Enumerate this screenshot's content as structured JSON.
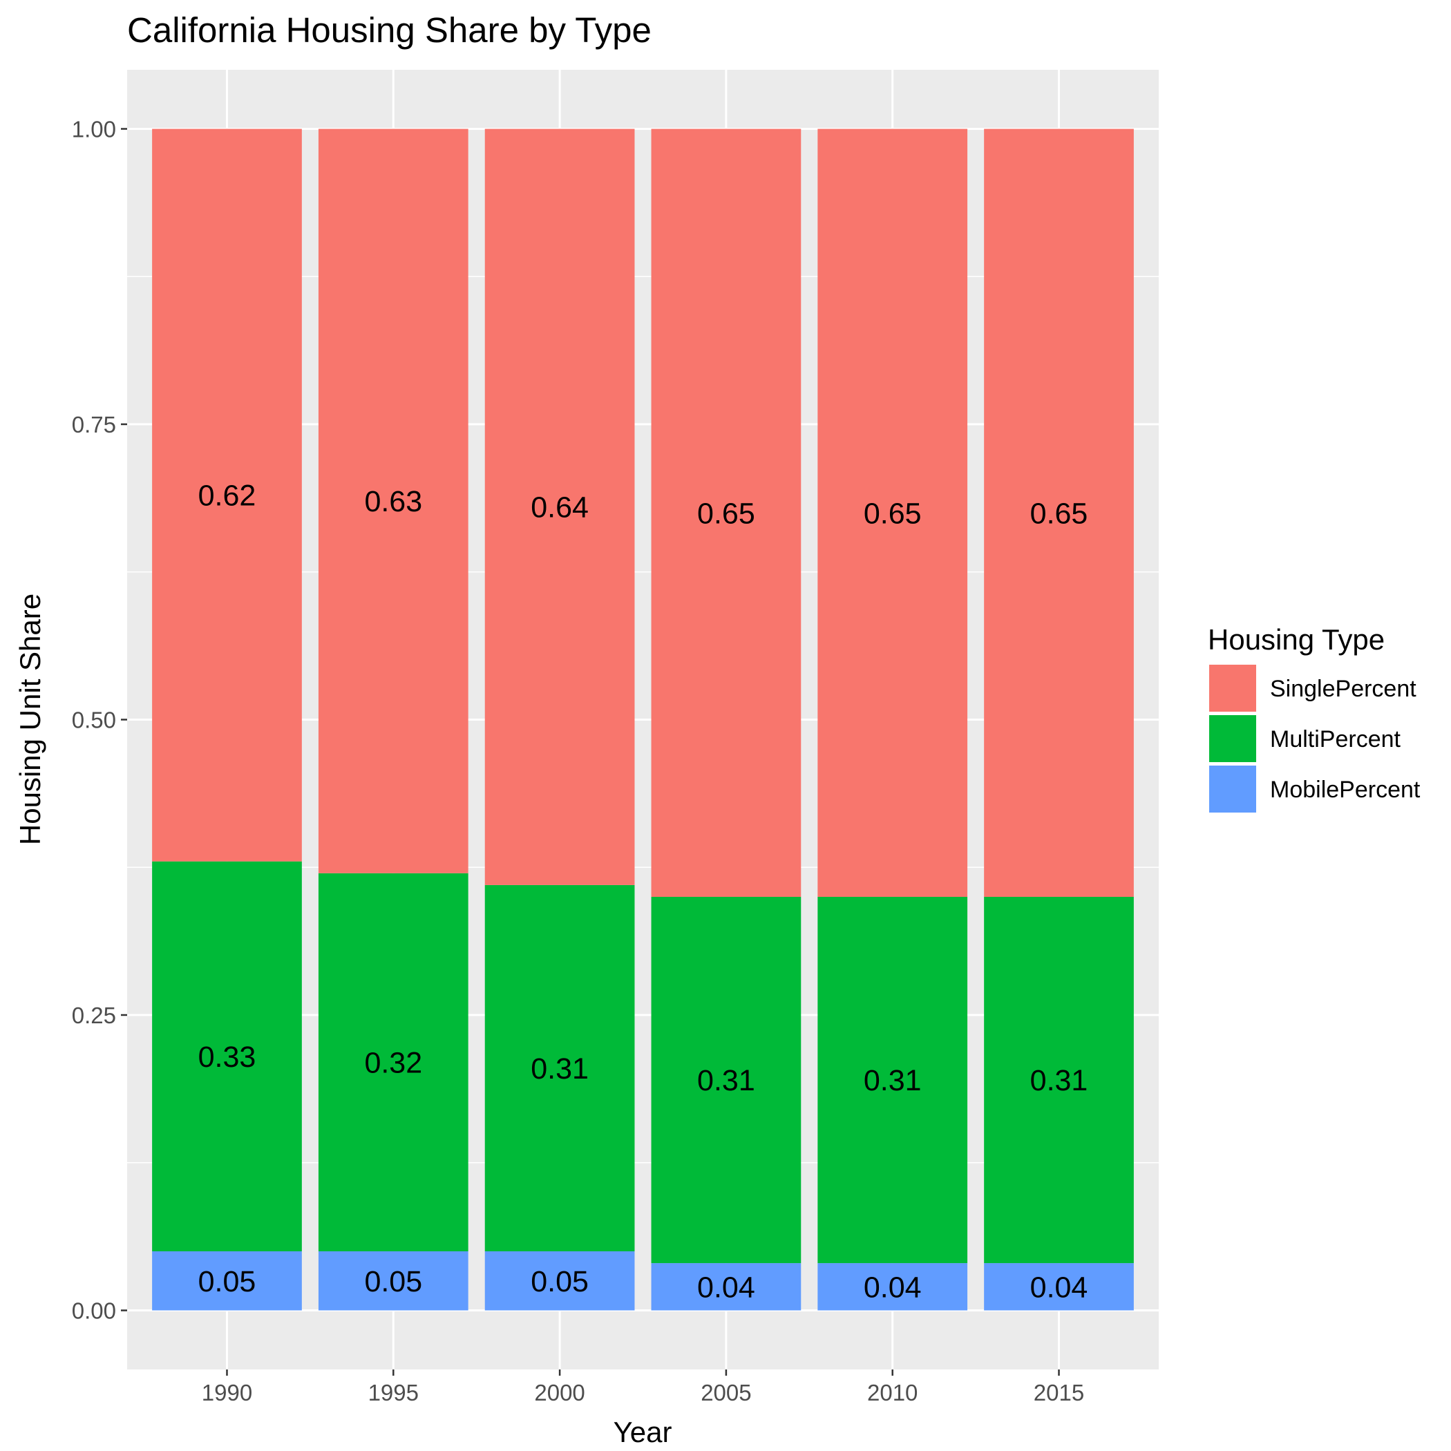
{
  "chart_data": {
    "type": "bar",
    "stacked": true,
    "title": "California Housing Share by Type",
    "xlabel": "Year",
    "ylabel": "Housing Unit Share",
    "categories": [
      "1990",
      "1995",
      "2000",
      "2005",
      "2010",
      "2015"
    ],
    "series": [
      {
        "name": "MobilePercent",
        "color": "#619CFF",
        "values": [
          0.05,
          0.05,
          0.05,
          0.04,
          0.04,
          0.04
        ]
      },
      {
        "name": "MultiPercent",
        "color": "#00BA38",
        "values": [
          0.33,
          0.32,
          0.31,
          0.31,
          0.31,
          0.31
        ]
      },
      {
        "name": "SinglePercent",
        "color": "#F8766D",
        "values": [
          0.62,
          0.63,
          0.64,
          0.65,
          0.65,
          0.65
        ]
      }
    ],
    "data_labels": [
      [
        "0.05",
        "0.05",
        "0.05",
        "0.04",
        "0.04",
        "0.04"
      ],
      [
        "0.33",
        "0.32",
        "0.31",
        "0.31",
        "0.31",
        "0.31"
      ],
      [
        "0.62",
        "0.63",
        "0.64",
        "0.65",
        "0.65",
        "0.65"
      ]
    ],
    "yticks": [
      "0.00",
      "0.25",
      "0.50",
      "0.75",
      "1.00"
    ],
    "ylim": [
      -0.05,
      1.05
    ],
    "grid": true,
    "legend": {
      "title": "Housing Type",
      "position": "right",
      "order": [
        "SinglePercent",
        "MultiPercent",
        "MobilePercent"
      ]
    },
    "colors": {
      "panel_background": "#EBEBEB",
      "grid": "#FFFFFF"
    }
  }
}
